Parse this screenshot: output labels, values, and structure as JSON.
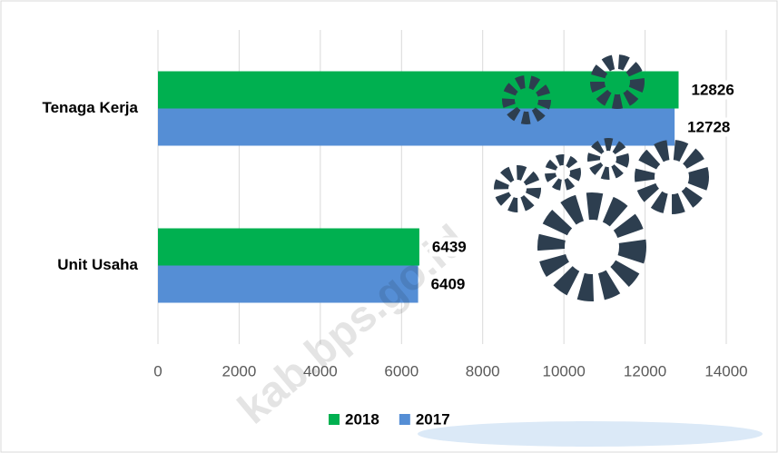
{
  "chart_data": {
    "type": "barh",
    "categories": [
      "Tenaga Kerja",
      "Unit Usaha"
    ],
    "series": [
      {
        "name": "2018",
        "color": "#00b050",
        "values": [
          12826,
          6439
        ]
      },
      {
        "name": "2017",
        "color": "#558ed5",
        "values": [
          12728,
          6409
        ]
      }
    ],
    "xlim": [
      0,
      14000
    ],
    "xticks": [
      0,
      2000,
      4000,
      6000,
      8000,
      10000,
      12000,
      14000
    ],
    "grid": true,
    "legend": "bottom",
    "watermark": "kab.bps.go.id"
  }
}
